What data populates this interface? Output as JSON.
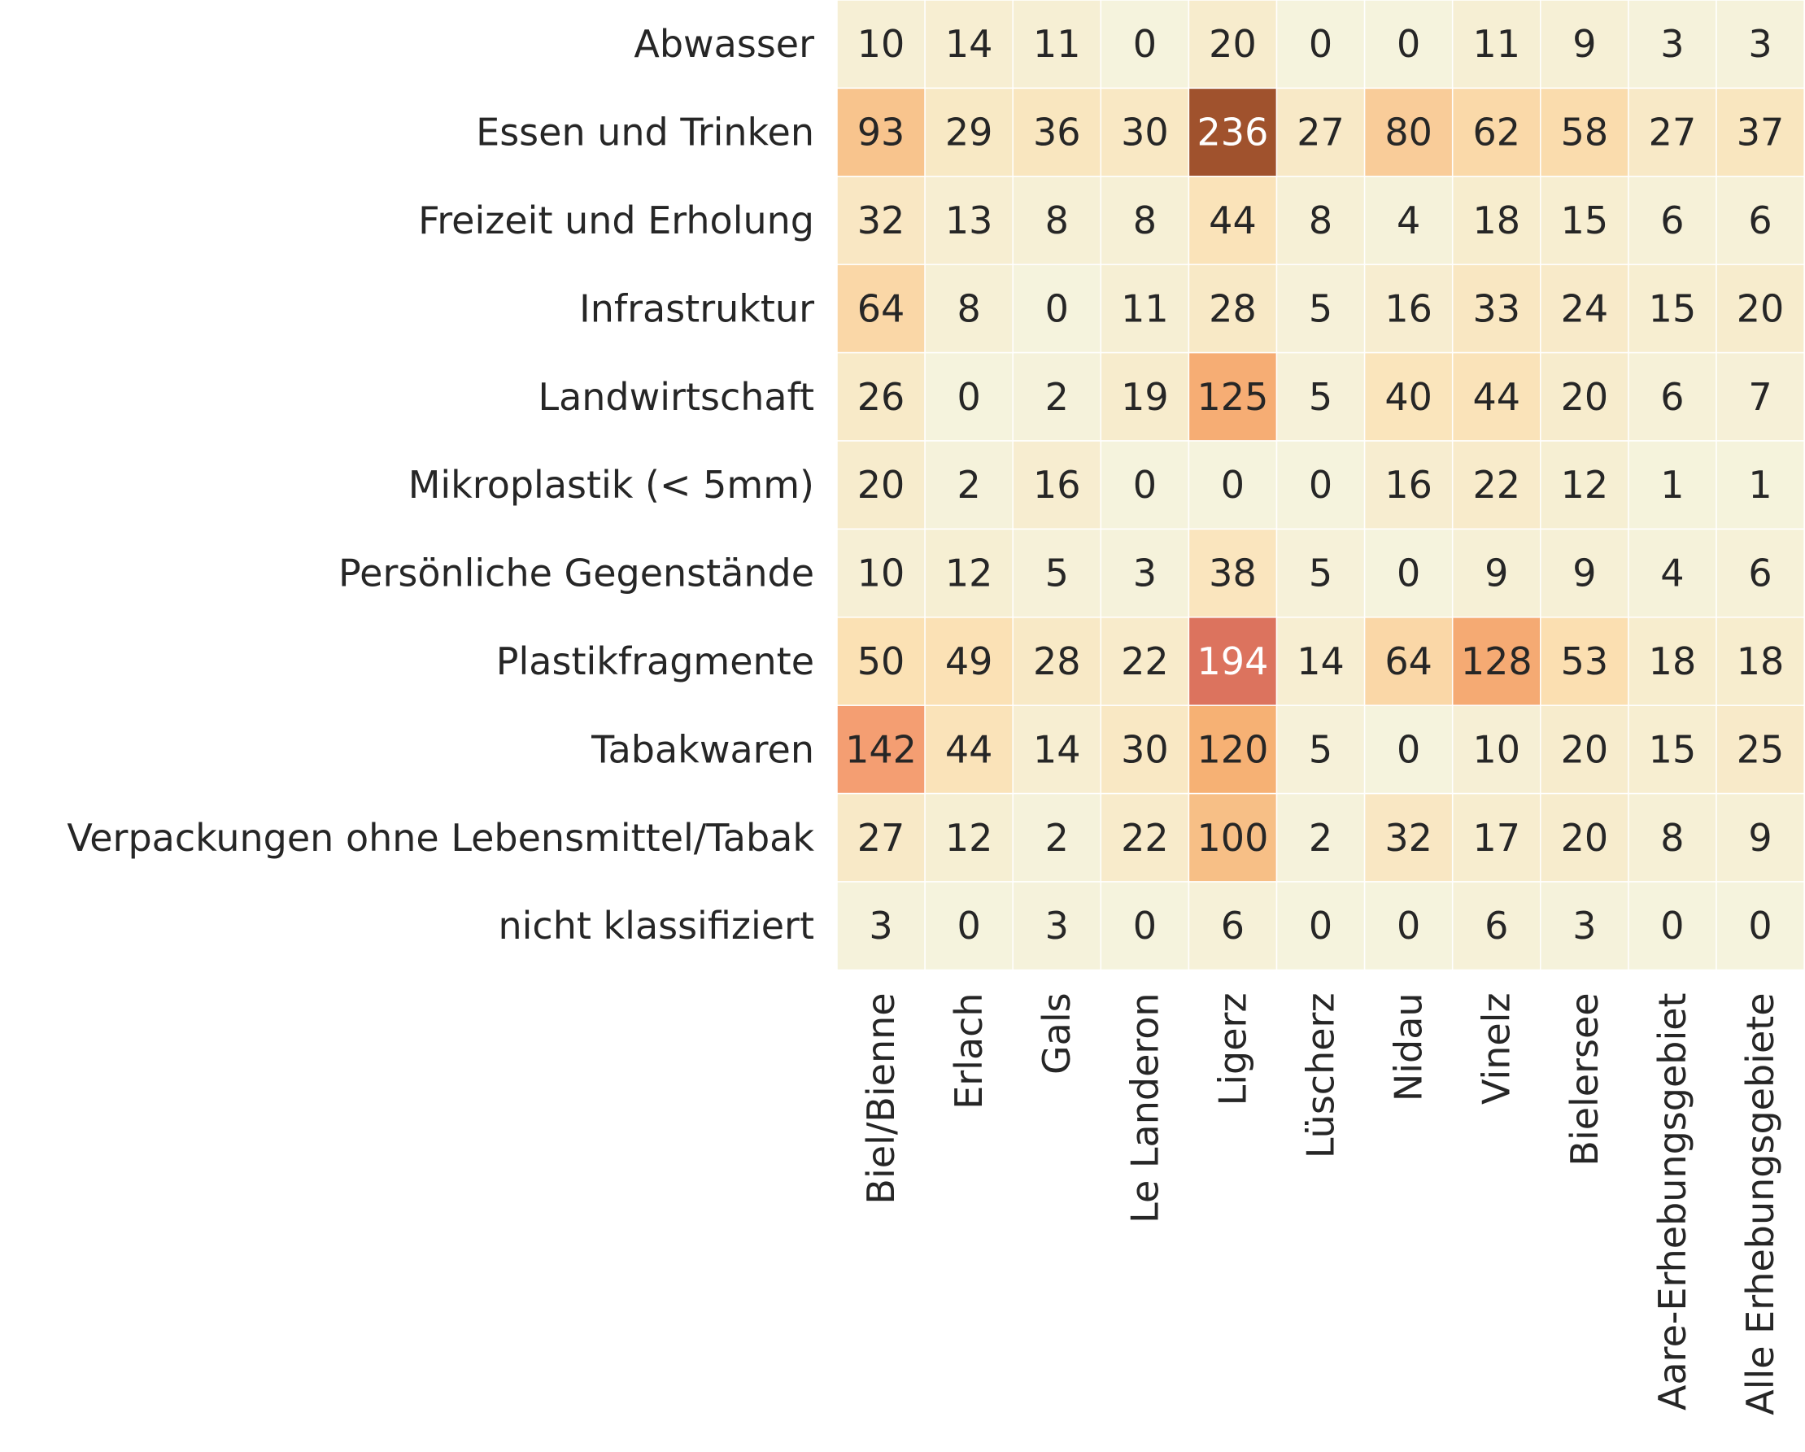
{
  "chart_data": {
    "type": "heatmap",
    "rows": [
      "Abwasser",
      "Essen und Trinken",
      "Freizeit und Erholung",
      "Infrastruktur",
      "Landwirtschaft",
      "Mikroplastik (< 5mm)",
      "Persönliche Gegenstände",
      "Plastikfragmente",
      "Tabakwaren",
      "Verpackungen ohne Lebensmittel/Tabak",
      "nicht klassifiziert"
    ],
    "columns": [
      "Biel/Bienne",
      "Erlach",
      "Gals",
      "Le Landeron",
      "Ligerz",
      "Lüscherz",
      "Nidau",
      "Vinelz",
      "Bielersee",
      "Aare-Erhebungsgebiet",
      "Alle Erhebungsgebiete"
    ],
    "values": [
      [
        10,
        14,
        11,
        0,
        20,
        0,
        0,
        11,
        9,
        3,
        3
      ],
      [
        93,
        29,
        36,
        30,
        236,
        27,
        80,
        62,
        58,
        27,
        37
      ],
      [
        32,
        13,
        8,
        8,
        44,
        8,
        4,
        18,
        15,
        6,
        6
      ],
      [
        64,
        8,
        0,
        11,
        28,
        5,
        16,
        33,
        24,
        15,
        20
      ],
      [
        26,
        0,
        2,
        19,
        125,
        5,
        40,
        44,
        20,
        6,
        7
      ],
      [
        20,
        2,
        16,
        0,
        0,
        0,
        16,
        22,
        12,
        1,
        1
      ],
      [
        10,
        12,
        5,
        3,
        38,
        5,
        0,
        9,
        9,
        4,
        6
      ],
      [
        50,
        49,
        28,
        22,
        194,
        14,
        64,
        128,
        53,
        18,
        18
      ],
      [
        142,
        44,
        14,
        30,
        120,
        5,
        0,
        10,
        20,
        15,
        25
      ],
      [
        27,
        12,
        2,
        22,
        100,
        2,
        32,
        17,
        20,
        8,
        9
      ],
      [
        3,
        0,
        3,
        0,
        6,
        0,
        0,
        6,
        3,
        0,
        0
      ]
    ],
    "color_scale": {
      "stops": [
        [
          0,
          "#f5f3dd"
        ],
        [
          50,
          "#fbe1b4"
        ],
        [
          120,
          "#f6b174"
        ],
        [
          180,
          "#f07e6e"
        ],
        [
          236,
          "#a0522d"
        ]
      ]
    },
    "cell_text_color_dark": "#262626",
    "cell_text_color_light": "#ffffff",
    "grid": false,
    "colorbar": false
  }
}
